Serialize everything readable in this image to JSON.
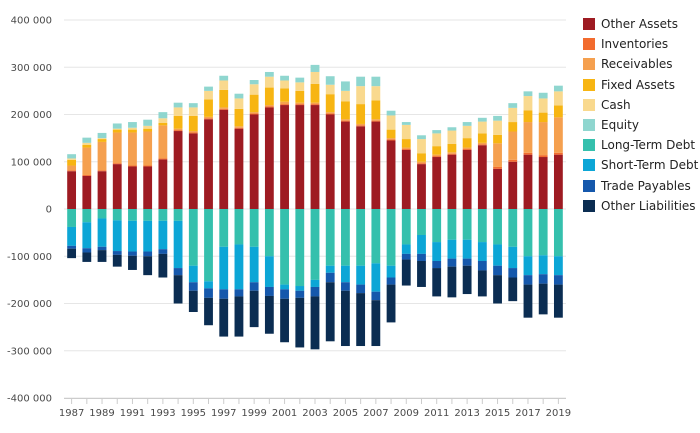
{
  "chart_data": {
    "type": "bar",
    "stacked": true,
    "title": "",
    "xlabel": "",
    "ylabel": "",
    "ylim": [
      -400000,
      400000
    ],
    "y_ticks": [
      400000,
      300000,
      200000,
      100000,
      0,
      -100000,
      -200000,
      -300000,
      -400000
    ],
    "y_tick_labels": [
      "400 000",
      "300 000",
      "200 000",
      "100 000",
      "0",
      "-100 000",
      "-200 000",
      "-300 000",
      "-400 000"
    ],
    "x_tick_labels": [
      "1987",
      "1989",
      "1991",
      "1993",
      "1995",
      "1997",
      "1999",
      "2001",
      "2003",
      "2005",
      "2007",
      "2009",
      "2011",
      "2013",
      "2015",
      "2017",
      "2019"
    ],
    "categories": [
      "1987",
      "1988",
      "1989",
      "1990",
      "1991",
      "1992",
      "1993",
      "1994",
      "1995",
      "1996",
      "1997",
      "1998",
      "1999",
      "2000",
      "2001",
      "2002",
      "2003",
      "2004",
      "2005",
      "2006",
      "2007",
      "2008",
      "2009",
      "2010",
      "2011",
      "2012",
      "2013",
      "2014",
      "2015",
      "2016",
      "2017",
      "2018",
      "2019"
    ],
    "legend_position": "right",
    "series": [
      {
        "name": "Other Assets",
        "color": "#9e1b22",
        "values": [
          80000,
          70000,
          80000,
          95000,
          90000,
          90000,
          105000,
          165000,
          160000,
          190000,
          210000,
          170000,
          200000,
          215000,
          220000,
          220000,
          220000,
          200000,
          185000,
          175000,
          185000,
          145000,
          125000,
          95000,
          110000,
          115000,
          125000,
          135000,
          85000,
          100000,
          115000,
          110000,
          115000
        ]
      },
      {
        "name": "Inventories",
        "color": "#f26b2e",
        "values": [
          2000,
          2000,
          2000,
          2000,
          2000,
          2000,
          2000,
          2000,
          2000,
          2000,
          2000,
          2000,
          2000,
          2000,
          2000,
          2000,
          2000,
          2000,
          2000,
          2000,
          2000,
          2000,
          2000,
          2000,
          2000,
          2000,
          2000,
          2000,
          4000,
          4000,
          4000,
          4000,
          4000
        ]
      },
      {
        "name": "Receivables",
        "color": "#f5a04f",
        "values": [
          10000,
          58000,
          60000,
          65000,
          70000,
          72000,
          70000,
          3000,
          3000,
          3000,
          3000,
          3000,
          3000,
          3000,
          5000,
          3000,
          3000,
          3000,
          3000,
          3000,
          3000,
          3000,
          3000,
          3000,
          3000,
          3000,
          3000,
          3000,
          50000,
          60000,
          65000,
          70000,
          75000
        ]
      },
      {
        "name": "Fixed Assets",
        "color": "#f7b512",
        "values": [
          12000,
          6000,
          6000,
          6000,
          6000,
          6000,
          5000,
          27000,
          32000,
          37000,
          37000,
          37000,
          37000,
          37000,
          28000,
          25000,
          40000,
          38000,
          38000,
          42000,
          40000,
          18000,
          18000,
          18000,
          18000,
          18000,
          20000,
          20000,
          18000,
          20000,
          25000,
          20000,
          25000
        ]
      },
      {
        "name": "Cash",
        "color": "#f9d98e",
        "values": [
          3000,
          4000,
          2000,
          2000,
          4000,
          6000,
          10000,
          18000,
          18000,
          18000,
          20000,
          22000,
          22000,
          23000,
          17000,
          18000,
          25000,
          20000,
          22000,
          38000,
          30000,
          30000,
          30000,
          30000,
          27000,
          28000,
          26000,
          25000,
          30000,
          30000,
          30000,
          30000,
          30000
        ]
      },
      {
        "name": "Equity",
        "color": "#8fd6cf",
        "values": [
          9000,
          11000,
          11000,
          11000,
          12000,
          13000,
          13000,
          10000,
          9000,
          9000,
          10000,
          10000,
          9000,
          10000,
          10000,
          10000,
          15000,
          18000,
          20000,
          20000,
          20000,
          10000,
          6000,
          8000,
          7000,
          7000,
          8000,
          8000,
          10000,
          10000,
          10000,
          12000,
          12000
        ]
      },
      {
        "name": "Long-Term Debt",
        "color": "#35c0ad",
        "values": [
          -38000,
          -28000,
          -20000,
          -24000,
          -25000,
          -25000,
          -25000,
          -25000,
          -120000,
          -153000,
          -80000,
          -75000,
          -80000,
          -100000,
          -160000,
          -163000,
          -150000,
          -120000,
          -120000,
          -120000,
          -115000,
          -120000,
          -75000,
          -55000,
          -70000,
          -65000,
          -65000,
          -70000,
          -75000,
          -80000,
          -100000,
          -98000,
          -100000
        ]
      },
      {
        "name": "Short-Term Debt",
        "color": "#0ca6d6",
        "values": [
          -40000,
          -55000,
          -60000,
          -65000,
          -65000,
          -65000,
          -60000,
          -100000,
          -35000,
          -15000,
          -90000,
          -95000,
          -75000,
          -65000,
          -10000,
          -10000,
          -15000,
          -15000,
          -35000,
          -40000,
          -60000,
          -25000,
          -20000,
          -40000,
          -40000,
          -40000,
          -40000,
          -40000,
          -45000,
          -45000,
          -40000,
          -40000,
          -40000
        ]
      },
      {
        "name": "Trade Payables",
        "color": "#1558ac",
        "values": [
          -6000,
          -9000,
          -7000,
          -8000,
          -9000,
          -10000,
          -10000,
          -15000,
          -18000,
          -20000,
          -20000,
          -15000,
          -18000,
          -19000,
          -20000,
          -15000,
          -20000,
          -20000,
          -18000,
          -18000,
          -18000,
          -15000,
          -12000,
          -15000,
          -15000,
          -17000,
          -15000,
          -20000,
          -20000,
          -20000,
          -20000,
          -20000,
          -20000
        ]
      },
      {
        "name": "Other Liabilities",
        "color": "#0b2d52",
        "values": [
          -20000,
          -20000,
          -25000,
          -25000,
          -30000,
          -40000,
          -50000,
          -60000,
          -45000,
          -58000,
          -80000,
          -85000,
          -77000,
          -80000,
          -92000,
          -105000,
          -112000,
          -125000,
          -117000,
          -112000,
          -97000,
          -80000,
          -55000,
          -55000,
          -60000,
          -65000,
          -60000,
          -55000,
          -60000,
          -50000,
          -70000,
          -65000,
          -70000
        ]
      }
    ]
  }
}
